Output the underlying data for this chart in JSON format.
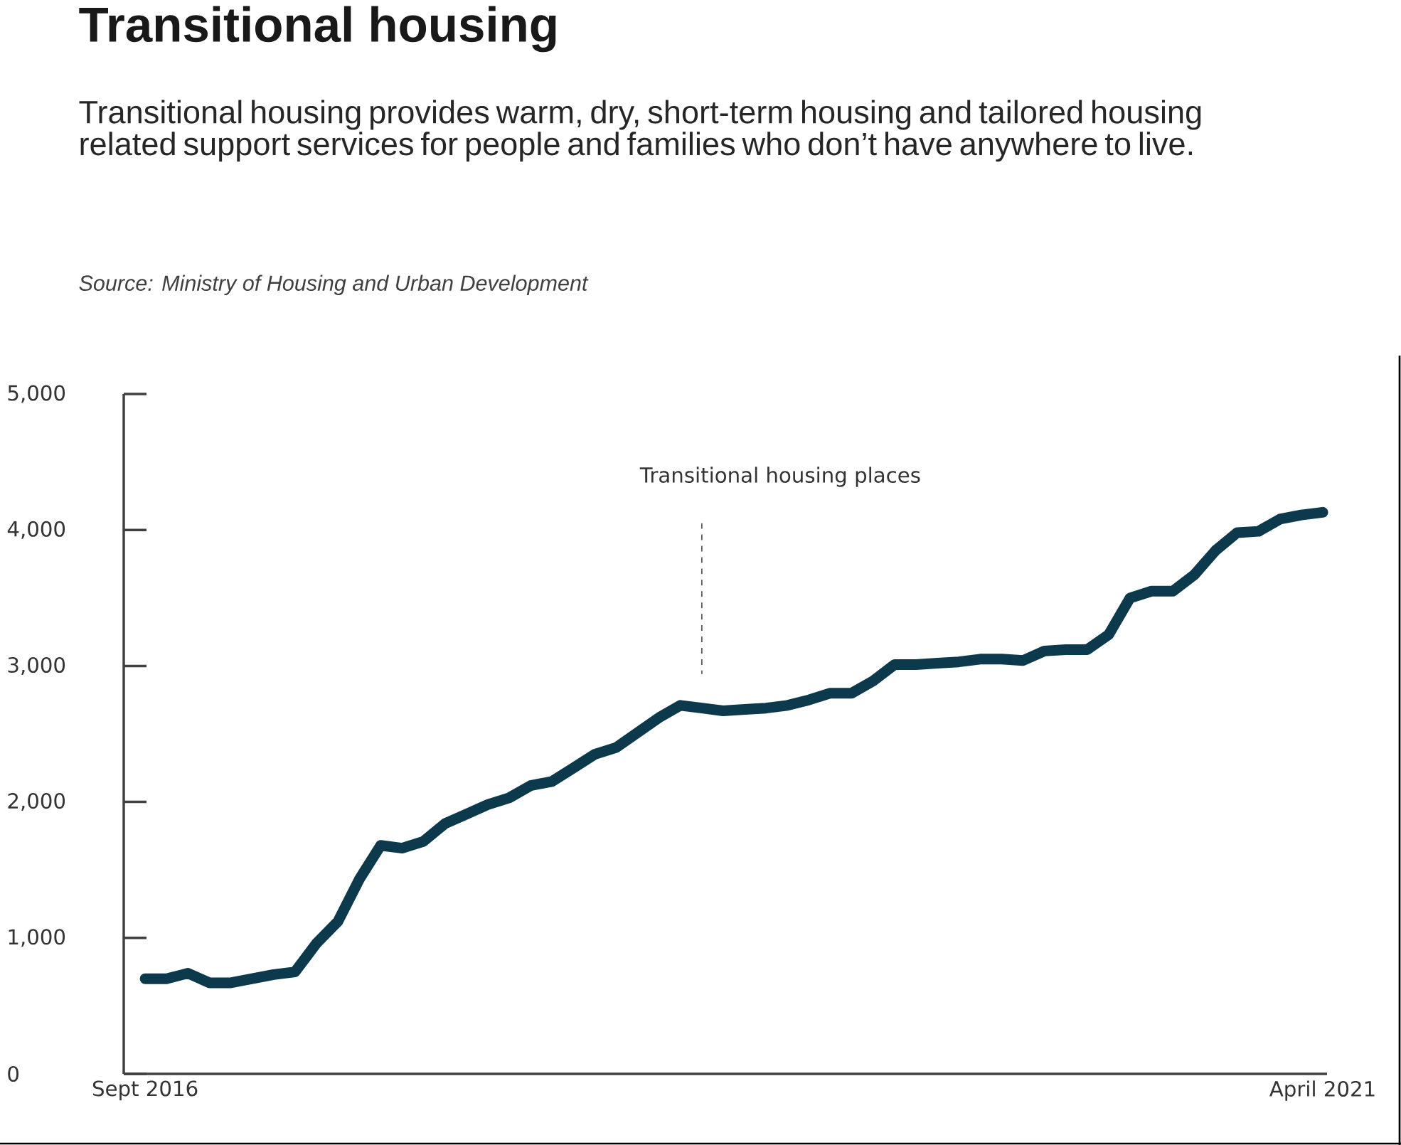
{
  "chart_data": {
    "type": "line",
    "title": "Transitional housing",
    "subtitle": "Transitional housing provides warm, dry, short-term housing and tailored housing related support services for people and families who don’t have anywhere to live.",
    "annotations": [
      "Source: Ministry of Housing and Urban Development"
    ],
    "categories": [
      "Sept 2016",
      null,
      null,
      null,
      null,
      null,
      null,
      null,
      null,
      null,
      null,
      null,
      null,
      null,
      null,
      null,
      null,
      null,
      null,
      null,
      null,
      null,
      null,
      null,
      null,
      null,
      null,
      null,
      null,
      null,
      null,
      null,
      null,
      null,
      null,
      null,
      null,
      null,
      null,
      null,
      null,
      null,
      null,
      null,
      null,
      null,
      null,
      null,
      null,
      null,
      null,
      null,
      null,
      null,
      null,
      "April 2021"
    ],
    "series": [
      {
        "name": "Transitional housing places",
        "color": "#0c3a4c",
        "values": [
          700,
          700,
          740,
          670,
          670,
          700,
          730,
          750,
          960,
          1120,
          1430,
          1680,
          1660,
          1710,
          1840,
          1910,
          1980,
          2030,
          2120,
          2150,
          2250,
          2350,
          2400,
          2510,
          2620,
          2710,
          2690,
          2670,
          2680,
          2690,
          2710,
          2750,
          2800,
          2800,
          2890,
          3010,
          3010,
          3020,
          3030,
          3050,
          3050,
          3040,
          3110,
          3120,
          3120,
          3230,
          3500,
          3550,
          3550,
          3670,
          3850,
          3980,
          3990,
          4080,
          4110,
          4130
        ]
      }
    ],
    "ylim": [
      0,
      5000
    ],
    "yticks": [
      0,
      {
        "value": 1000,
        "label": "1,000"
      },
      {
        "value": 2000,
        "label": "2,000"
      },
      {
        "value": 3000,
        "label": "3,000"
      },
      {
        "value": 4000,
        "label": "4,000"
      },
      {
        "value": 5000,
        "label": "5,000"
      }
    ],
    "grid": false,
    "legend": false
  }
}
